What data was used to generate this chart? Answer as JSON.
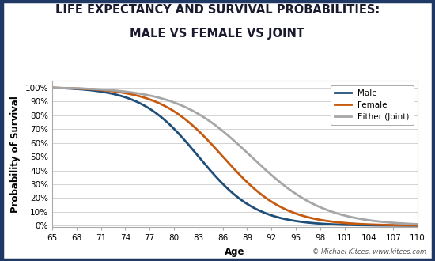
{
  "title_line1": "LIFE EXPECTANCY AND SURVIVAL PROBABILITIES:",
  "title_line2": "MALE VS FEMALE VS JOINT",
  "xlabel": "Age",
  "ylabel": "Probability of Survival",
  "age_start": 65,
  "age_end": 110,
  "x_ticks": [
    65,
    68,
    71,
    74,
    77,
    80,
    83,
    86,
    89,
    92,
    95,
    98,
    101,
    104,
    107,
    110
  ],
  "y_ticks": [
    0,
    10,
    20,
    30,
    40,
    50,
    60,
    70,
    80,
    90,
    100
  ],
  "male_color": "#1f4e79",
  "female_color": "#c55a11",
  "joint_color": "#a6a6a6",
  "line_width": 2.0,
  "legend_labels": [
    "Male",
    "Female",
    "Either (Joint)"
  ],
  "background_color": "#ffffff",
  "border_color": "#1f3864",
  "title_fontsize": 10.5,
  "axis_label_fontsize": 8.5,
  "tick_fontsize": 7.5,
  "watermark": "© Michael Kitces, www.kitces.com",
  "male_midpoint": 83.0,
  "male_steepness": 0.28,
  "female_midpoint": 86.0,
  "female_steepness": 0.26,
  "joint_midpoint": 89.5,
  "joint_steepness": 0.22
}
